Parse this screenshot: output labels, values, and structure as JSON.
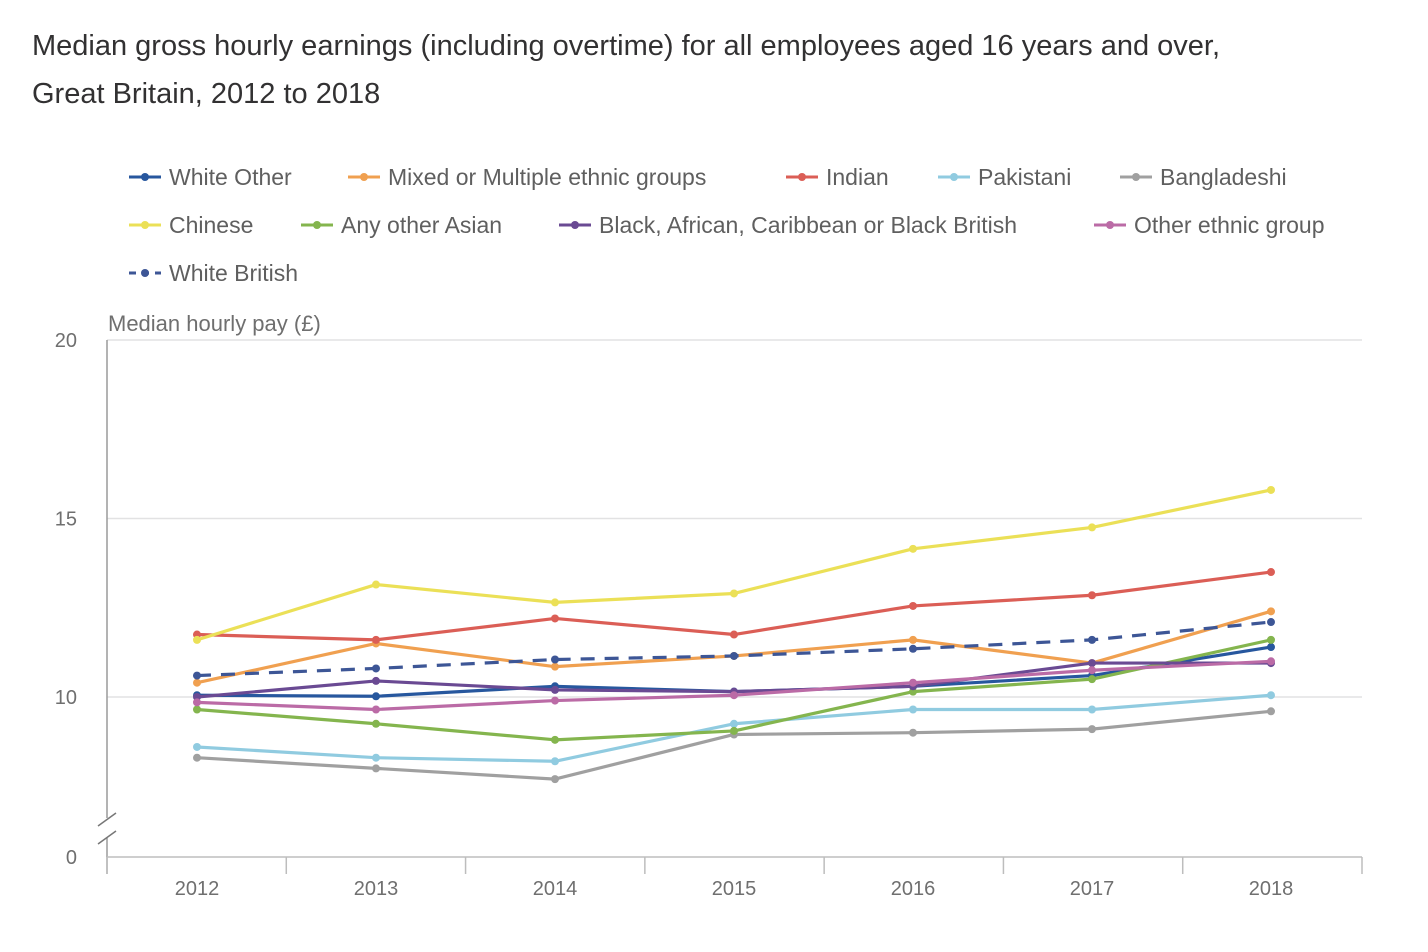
{
  "chart_data": {
    "type": "line",
    "title": "Median gross hourly earnings (including overtime) for all employees aged 16 years and over, Great Britain, 2012 to 2018",
    "ylabel": "Median hourly pay (£)",
    "xlabel": "",
    "categories": [
      "2012",
      "2013",
      "2014",
      "2015",
      "2016",
      "2017",
      "2018"
    ],
    "ylim": [
      0,
      20
    ],
    "axis_break": true,
    "y_ticks": [
      0,
      10,
      15,
      20
    ],
    "y_tick_labels": [
      "0",
      "10",
      "15",
      "20"
    ],
    "grid": true,
    "legend_position": "top",
    "series": [
      {
        "name": "White Other",
        "color": "#27579e",
        "dashed": false,
        "values": [
          10.05,
          10.02,
          10.3,
          10.15,
          10.3,
          10.6,
          11.4
        ]
      },
      {
        "name": "Mixed or Multiple ethnic groups",
        "color": "#f0a050",
        "dashed": false,
        "values": [
          10.4,
          11.5,
          10.85,
          11.15,
          11.6,
          10.95,
          12.4
        ]
      },
      {
        "name": "Indian",
        "color": "#db5e56",
        "dashed": false,
        "values": [
          11.75,
          11.6,
          12.2,
          11.75,
          12.55,
          12.85,
          13.5
        ]
      },
      {
        "name": "Pakistani",
        "color": "#90cbe0",
        "dashed": false,
        "values": [
          8.6,
          8.3,
          8.2,
          9.25,
          9.65,
          9.65,
          10.05
        ]
      },
      {
        "name": "Bangladeshi",
        "color": "#a0a0a0",
        "dashed": false,
        "values": [
          8.3,
          8.0,
          7.7,
          8.95,
          9.0,
          9.1,
          9.6
        ]
      },
      {
        "name": "Chinese",
        "color": "#ebe057",
        "dashed": false,
        "values": [
          11.6,
          13.15,
          12.65,
          12.9,
          14.15,
          14.75,
          15.8
        ]
      },
      {
        "name": "Any other Asian",
        "color": "#84b54e",
        "dashed": false,
        "values": [
          9.65,
          9.25,
          8.8,
          9.05,
          10.15,
          10.5,
          11.6
        ]
      },
      {
        "name": "Black, African, Caribbean or Black British",
        "color": "#6a4a93",
        "dashed": false,
        "values": [
          10.0,
          10.45,
          10.2,
          10.15,
          10.3,
          10.95,
          10.95
        ]
      },
      {
        "name": "Other ethnic group",
        "color": "#bb6ba6",
        "dashed": false,
        "values": [
          9.85,
          9.65,
          9.9,
          10.05,
          10.4,
          10.75,
          11.0
        ]
      },
      {
        "name": "White British",
        "color": "#3d5696",
        "dashed": true,
        "values": [
          10.6,
          10.8,
          11.05,
          11.15,
          11.35,
          11.6,
          12.1
        ]
      }
    ]
  }
}
